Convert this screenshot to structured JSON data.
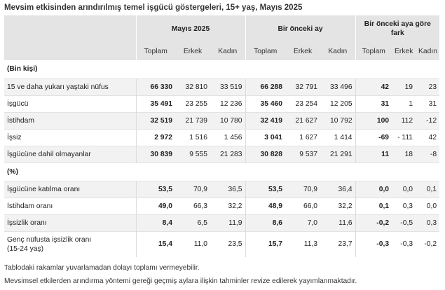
{
  "title": "Mevsim etkisinden arındırılmış temel işgücü göstergeleri, 15+ yaş, Mayıs 2025",
  "header": {
    "groups": [
      "Mayıs 2025",
      "Bir önceki ay",
      "Bir önceki aya göre fark"
    ],
    "subcols": [
      "Toplam",
      "Erkek",
      "Kadın"
    ]
  },
  "section1_label": "(Bin kişi)",
  "section2_label": "(%)",
  "rows1": [
    {
      "label": "15 ve daha yukarı yaştaki nüfus",
      "values": [
        "66 330",
        "32 810",
        "33 519",
        "66 288",
        "32 791",
        "33 496",
        "42",
        "19",
        "23"
      ]
    },
    {
      "label": "İşgücü",
      "values": [
        "35 491",
        "23 255",
        "12 236",
        "35 460",
        "23 254",
        "12 205",
        "31",
        "1",
        "31"
      ]
    },
    {
      "label": "İstihdam",
      "values": [
        "32 519",
        "21 739",
        "10 780",
        "32 419",
        "21 627",
        "10 792",
        "100",
        "112",
        "-12"
      ]
    },
    {
      "label": "İşsiz",
      "values": [
        "2 972",
        "1 516",
        "1 456",
        "3 041",
        "1 627",
        "1 414",
        "-69",
        "- 111",
        "42"
      ]
    },
    {
      "label": "İşgücüne dahil olmayanlar",
      "values": [
        "30 839",
        "9 555",
        "21 283",
        "30 828",
        "9 537",
        "21 291",
        "11",
        "18",
        "-8"
      ]
    }
  ],
  "rows2": [
    {
      "label": "İşgücüne katılma oranı",
      "values": [
        "53,5",
        "70,9",
        "36,5",
        "53,5",
        "70,9",
        "36,4",
        "0,0",
        "0,0",
        "0,1"
      ]
    },
    {
      "label": "İstihdam oranı",
      "values": [
        "49,0",
        "66,3",
        "32,2",
        "48,9",
        "66,0",
        "32,2",
        "0,1",
        "0,3",
        "0,0"
      ]
    },
    {
      "label": "İşsizlik oranı",
      "values": [
        "8,4",
        "6,5",
        "11,9",
        "8,6",
        "7,0",
        "11,6",
        "-0,2",
        "-0,5",
        "0,3"
      ]
    },
    {
      "label": "Genç nüfusta işsizlik oranı (15-24 yaş)",
      "values": [
        "15,4",
        "11,0",
        "23,5",
        "15,7",
        "11,3",
        "23,7",
        "-0,3",
        "-0,3",
        "-0,2"
      ]
    }
  ],
  "notes": [
    "Tablodaki rakamlar yuvarlamadan dolayı toplamı vermeyebilir.",
    "Mevsimsel etkilerden arındırma yöntemi gereği geçmiş aylara ilişkin tahminler revize edilerek yayımlanmaktadır."
  ]
}
